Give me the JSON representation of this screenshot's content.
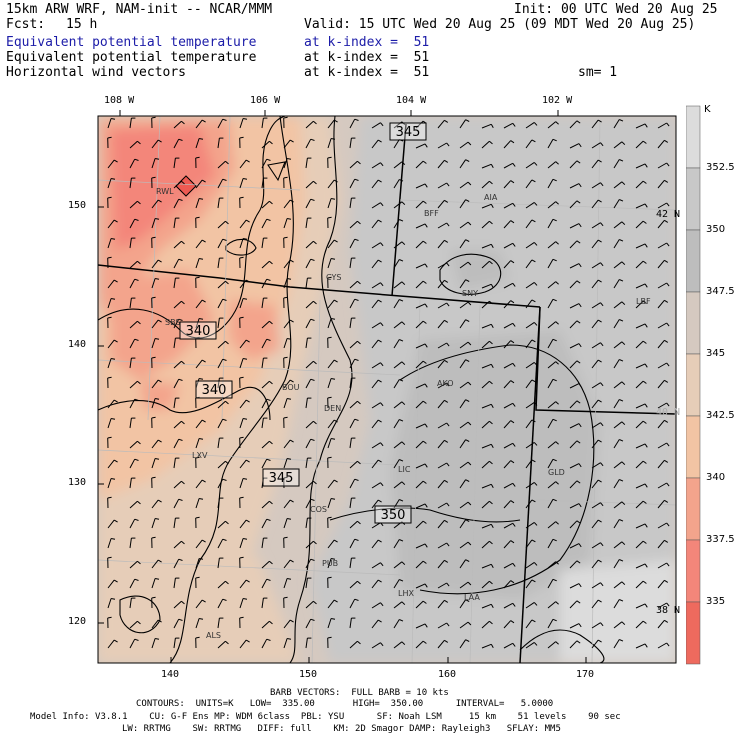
{
  "header": {
    "model": "15km ARW WRF, NAM-init -- NCAR/MMM",
    "init": "Init: 00 UTC Wed 20 Aug 25",
    "fcst_label": "Fcst:",
    "fcst_value": "15 h",
    "valid": "Valid: 15 UTC Wed 20 Aug 25 (09 MDT Wed 20 Aug 25)",
    "fields": [
      {
        "name": "Equivalent potential temperature",
        "level": "at k-index =  51"
      },
      {
        "name": "Equivalent potential temperature",
        "level": "at k-index =  51"
      },
      {
        "name": "Horizontal wind vectors",
        "level": "at k-index =  51"
      }
    ],
    "sm": "sm= 1"
  },
  "map": {
    "top_lon_labels": [
      "108 W",
      "106 W",
      "104 W",
      "102 W"
    ],
    "right_lat_labels": [
      "42 N",
      "40 N",
      "38 N"
    ],
    "left_grid_labels": [
      "150",
      "140",
      "130",
      "120"
    ],
    "bottom_grid_labels": [
      "140",
      "150",
      "160",
      "170"
    ],
    "stations": [
      "RWL",
      "BFF",
      "AIA",
      "CYS",
      "SNY",
      "LBF",
      "SBS",
      "BOU",
      "DEN",
      "AKO",
      "LXV",
      "LIC",
      "GLD",
      "COS",
      "PUB",
      "LHX",
      "LAA",
      "ALS"
    ],
    "contour_labels": [
      "345",
      "340",
      "340",
      "345",
      "350"
    ]
  },
  "colorbar": {
    "unit": "K",
    "ticks": [
      "352.5",
      "350",
      "347.5",
      "345",
      "342.5",
      "340",
      "337.5",
      "335"
    ],
    "colors": [
      "#dcdcdc",
      "#c8c8c8",
      "#bdbdbd",
      "#d5c9c0",
      "#e6cdb8",
      "#f2c4a4",
      "#f3a48c",
      "#f3867a",
      "#ee6a5e"
    ]
  },
  "footer": {
    "barb": "BARB VECTORS:  FULL BARB = 10 kts",
    "contours": "CONTOURS:  UNITS=K   LOW=  335.00       HIGH=  350.00      INTERVAL=   5.0000",
    "model_info": "Model Info: V3.8.1    CU: G-F Ens MP: WDM 6class  PBL: YSU      SF: Noah LSM     15 km    51 levels    90 sec",
    "physics": "LW: RRTMG    SW: RRTMG   DIFF: full    KM: 2D Smagor DAMP: Rayleigh3   SFLAY: MM5"
  }
}
